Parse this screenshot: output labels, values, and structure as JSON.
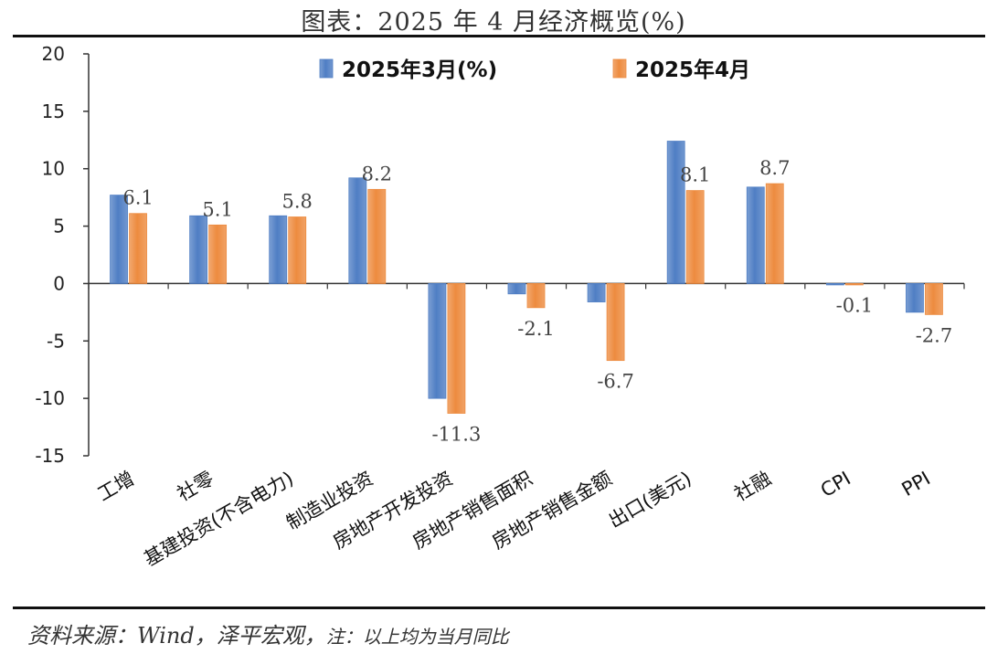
{
  "header": {
    "title": "图表：2025 年 4 月经济概览(%)"
  },
  "footer": {
    "source": "资料来源：Wind，泽平宏观，",
    "note": "注：以上均为当月同比"
  },
  "colors": {
    "series1": "#4f7ec4",
    "series2": "#ed8b3f"
  },
  "chart_data": {
    "type": "bar",
    "title": "图表：2025 年 4 月经济概览(%)",
    "categories": [
      "工增",
      "社零",
      "基建投资(不含电力)",
      "制造业投资",
      "房地产开发投资",
      "房地产销售面积",
      "房地产销售金额",
      "出口(美元)",
      "社融",
      "CPI",
      "PPI"
    ],
    "series": [
      {
        "name": "2025年3月(%)",
        "values": [
          7.7,
          5.9,
          5.9,
          9.2,
          -10.0,
          -0.9,
          -1.6,
          12.4,
          8.4,
          -0.1,
          -2.5
        ]
      },
      {
        "name": "2025年4月",
        "values": [
          6.1,
          5.1,
          5.8,
          8.2,
          -11.3,
          -2.1,
          -6.7,
          8.1,
          8.7,
          -0.1,
          -2.7
        ]
      }
    ],
    "data_labels": [
      "6.1",
      "5.1",
      "5.8",
      "8.2",
      "-11.3",
      "-2.1",
      "-6.7",
      "8.1",
      "8.7",
      "-0.1",
      "-2.7"
    ],
    "ylim": [
      -15,
      20
    ],
    "yticks": [
      20,
      15,
      10,
      5,
      0,
      -5,
      -10,
      -15
    ],
    "xlabel": "",
    "ylabel": "",
    "grid": false,
    "legend_position": "top"
  }
}
